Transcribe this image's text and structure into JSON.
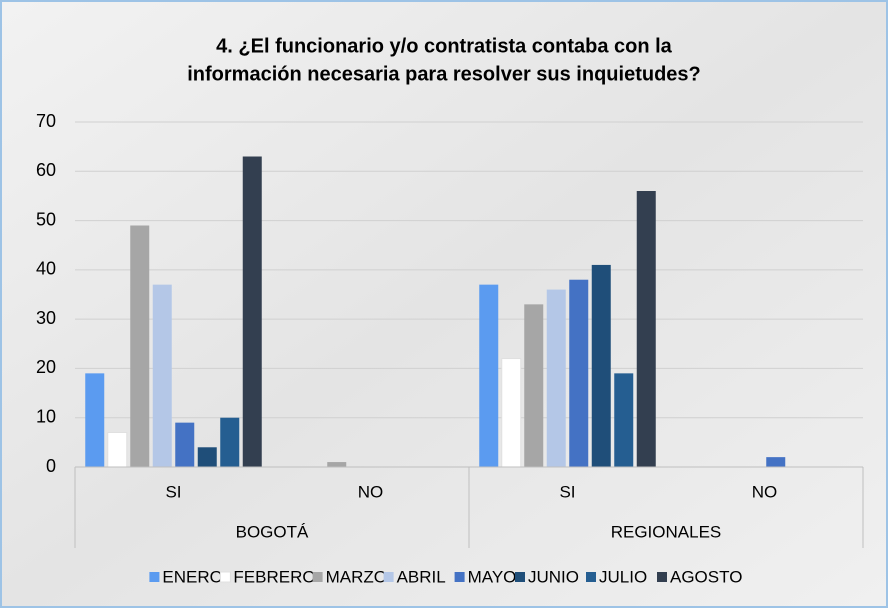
{
  "chart_data": {
    "type": "bar",
    "title": [
      "4. ¿El funcionario y/o contratista contaba con la",
      "información necesaria para resolver sus inquietudes?"
    ],
    "categories": [
      "SI",
      "NO",
      "SI",
      "NO"
    ],
    "category_groups": [
      "BOGOTÁ",
      "REGIONALES"
    ],
    "series": [
      {
        "name": "ENERO",
        "color": "#5b9bf0",
        "values": [
          19,
          0,
          37,
          0
        ]
      },
      {
        "name": "FEBRERO",
        "color": "#ffffff",
        "values": [
          7,
          0,
          22,
          0
        ]
      },
      {
        "name": "MARZO",
        "color": "#a6a6a6",
        "values": [
          49,
          1,
          33,
          0
        ]
      },
      {
        "name": "ABRIL",
        "color": "#b4c7e7",
        "values": [
          37,
          0,
          36,
          0
        ]
      },
      {
        "name": "MAYO",
        "color": "#4472c4",
        "values": [
          9,
          0,
          38,
          2
        ]
      },
      {
        "name": "JUNIO",
        "color": "#1f4e79",
        "values": [
          4,
          0,
          41,
          0
        ]
      },
      {
        "name": "JULIO",
        "color": "#255e91",
        "values": [
          10,
          0,
          19,
          0
        ]
      },
      {
        "name": "AGOSTO",
        "color": "#333f50",
        "values": [
          63,
          0,
          56,
          0
        ]
      }
    ],
    "ylim": [
      0,
      70
    ],
    "yticks": [
      0,
      10,
      20,
      30,
      40,
      50,
      60,
      70
    ],
    "grid": true,
    "legend": "bottom"
  }
}
